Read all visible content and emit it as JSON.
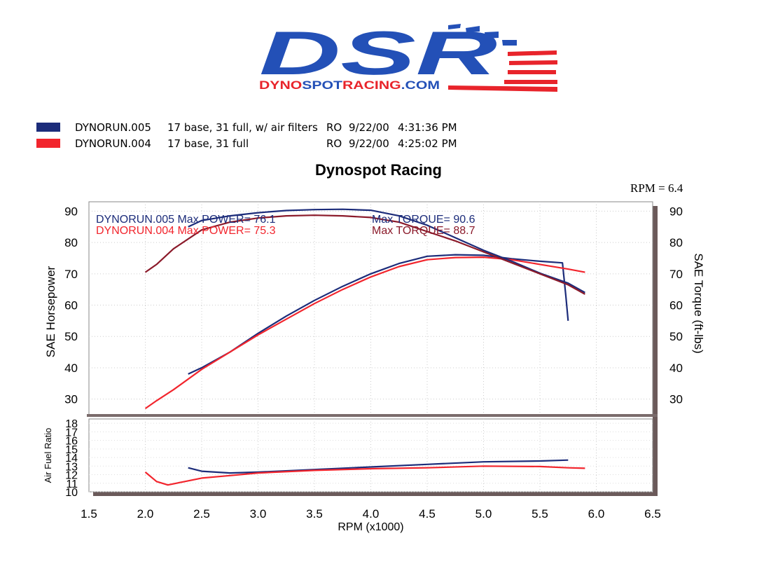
{
  "logo": {
    "brand": "DSR",
    "tagline_parts": [
      "DYNO",
      "SPOT",
      "RACING",
      ".COM"
    ],
    "colors": {
      "blue": "#2350b7",
      "red": "#e8242b"
    }
  },
  "legend": [
    {
      "color": "#1c2c7a",
      "run": "DYNORUN.005",
      "desc": "17 base, 31 full, w/ air filters",
      "op": "RO",
      "date": "9/22/00",
      "time": "4:31:36 PM"
    },
    {
      "color": "#f2252d",
      "run": "DYNORUN.004",
      "desc": "17 base, 31 full",
      "op": "RO",
      "date": "9/22/00",
      "time": "4:25:02 PM"
    }
  ],
  "title": "Dynospot Racing",
  "rpm_readout": "RPM = 6.4",
  "chart_data": {
    "type": "line",
    "xlabel": "RPM (x1000)",
    "x_ticks": [
      "1.5",
      "2.0",
      "2.5",
      "3.0",
      "3.5",
      "4.0",
      "4.5",
      "5.0",
      "5.5",
      "6.0",
      "6.5"
    ],
    "xlim": [
      1.5,
      6.5
    ],
    "grid": true,
    "upper": {
      "ylabel_left": "SAE Horsepower",
      "ylabel_right": "SAE Torque (ft-lbs)",
      "ylim": [
        25,
        93
      ],
      "y_ticks": [
        "30",
        "40",
        "50",
        "60",
        "70",
        "80",
        "90"
      ],
      "annotations": [
        {
          "text": "DYNORUN.005  Max POWER= 76.1",
          "color": "#1c2c7a"
        },
        {
          "text": "DYNORUN.004  Max POWER= 75.3",
          "color": "#f2252d"
        },
        {
          "text": "Max TORQUE= 90.6",
          "color": "#1c2c7a"
        },
        {
          "text": "Max TORQUE= 88.7",
          "color": "#8b1a2a"
        }
      ],
      "series": [
        {
          "name": "DYNORUN.005",
          "kind": "power",
          "color": "#1c2c7a",
          "x": [
            2.38,
            2.5,
            2.75,
            3.0,
            3.25,
            3.5,
            3.75,
            4.0,
            4.25,
            4.5,
            4.75,
            5.0,
            5.25,
            5.5,
            5.7,
            5.73,
            5.75
          ],
          "y": [
            38,
            40,
            45,
            51,
            56.5,
            61.5,
            66,
            70,
            73.3,
            75.6,
            76.1,
            75.9,
            74.8,
            74,
            73.5,
            63,
            55
          ]
        },
        {
          "name": "DYNORUN.004",
          "kind": "power",
          "color": "#f2252d",
          "x": [
            2.0,
            2.1,
            2.25,
            2.5,
            2.75,
            3.0,
            3.25,
            3.5,
            3.75,
            4.0,
            4.25,
            4.5,
            4.75,
            5.0,
            5.25,
            5.5,
            5.75,
            5.9
          ],
          "y": [
            27,
            29.5,
            33,
            39.5,
            45,
            50.5,
            55.5,
            60.5,
            65,
            69,
            72.3,
            74.5,
            75.2,
            75.3,
            74.5,
            73,
            71.5,
            70.5
          ]
        },
        {
          "name": "DYNORUN.005",
          "kind": "torque",
          "color": "#1c2c7a",
          "x": [
            2.38,
            2.5,
            2.75,
            3.0,
            3.25,
            3.5,
            3.75,
            4.0,
            4.25,
            4.5,
            4.75,
            5.0,
            5.25,
            5.5,
            5.75,
            5.9
          ],
          "y": [
            85,
            87,
            88.5,
            89.5,
            90.2,
            90.5,
            90.6,
            90.3,
            88.5,
            85.5,
            81.5,
            77.5,
            74,
            70.2,
            67,
            64
          ]
        },
        {
          "name": "DYNORUN.004",
          "kind": "torque",
          "color": "#8b1a2a",
          "x": [
            2.0,
            2.1,
            2.25,
            2.5,
            2.75,
            3.0,
            3.25,
            3.5,
            3.75,
            4.0,
            4.25,
            4.5,
            4.75,
            5.0,
            5.25,
            5.5,
            5.75,
            5.9
          ],
          "y": [
            70.5,
            73,
            78,
            84,
            86.5,
            87.8,
            88.5,
            88.7,
            88.5,
            88,
            86.5,
            83.5,
            80.5,
            77,
            73.5,
            70,
            66.5,
            63.5
          ]
        }
      ]
    },
    "lower": {
      "ylabel": "Air Fuel Ratio",
      "ylim": [
        10,
        18.5
      ],
      "y_ticks": [
        "10",
        "11",
        "12",
        "13",
        "14",
        "15",
        "16",
        "17",
        "18"
      ],
      "series": [
        {
          "name": "DYNORUN.005",
          "kind": "afr",
          "color": "#1c2c7a",
          "x": [
            2.38,
            2.5,
            2.75,
            3.0,
            3.5,
            4.0,
            4.5,
            5.0,
            5.5,
            5.75
          ],
          "y": [
            12.8,
            12.4,
            12.2,
            12.3,
            12.6,
            12.9,
            13.2,
            13.5,
            13.6,
            13.7
          ]
        },
        {
          "name": "DYNORUN.004",
          "kind": "afr",
          "color": "#f2252d",
          "x": [
            2.0,
            2.1,
            2.2,
            2.35,
            2.5,
            2.75,
            3.0,
            3.5,
            4.0,
            4.5,
            5.0,
            5.5,
            5.75,
            5.9
          ],
          "y": [
            12.3,
            11.2,
            10.8,
            11.2,
            11.6,
            11.9,
            12.2,
            12.5,
            12.7,
            12.8,
            13.0,
            12.95,
            12.8,
            12.75
          ]
        }
      ]
    }
  }
}
